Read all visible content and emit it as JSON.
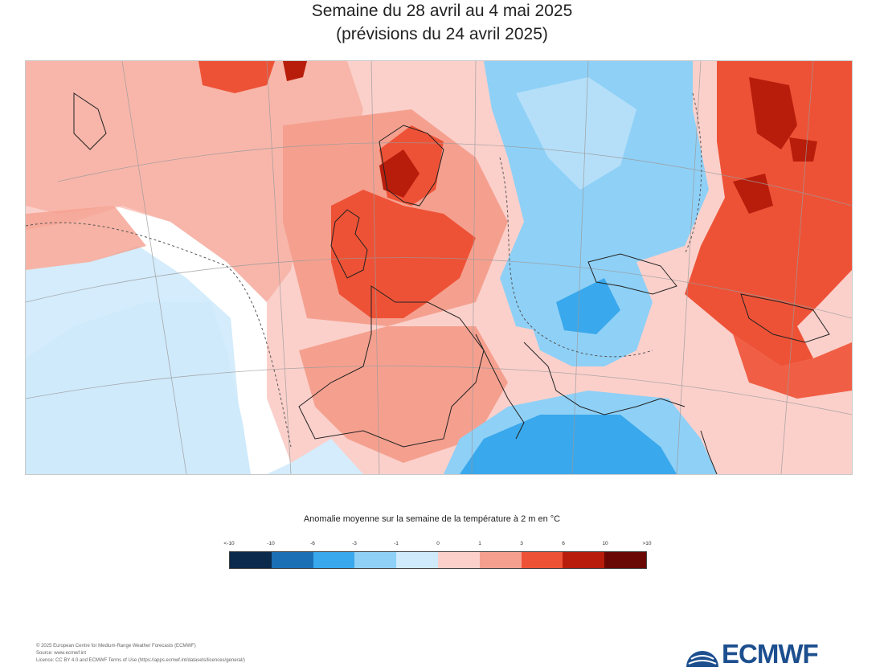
{
  "title": {
    "line1": "Semaine du 28 avril au 4 mai 2025",
    "line2": "(prévisions du 24 avril 2025)"
  },
  "legend": {
    "title": "Anomalie moyenne sur la semaine de la température à 2 m en °C",
    "ticks": [
      "<-10",
      "-10",
      "-6",
      "-3",
      "-1",
      "0",
      "1",
      "3",
      "6",
      "10",
      ">10"
    ],
    "colors": [
      "#0b2a4c",
      "#1b6fb5",
      "#39a8ec",
      "#8fd0f6",
      "#cfeafb",
      "#fbd0cb",
      "#f5a08f",
      "#ee5236",
      "#b81d0c",
      "#6a0806"
    ]
  },
  "footer": {
    "line1": "© 2025 European Centre for Medium-Range Weather Forecasts (ECMWF)",
    "line2": "Source: www.ecmwf.int",
    "line3": "Licence: CC BY 4.0 and ECMWF Terms of Use (https://apps.ecmwf.int/datasets/licences/general/)"
  },
  "logo": {
    "text": "ECMWF",
    "icon": "ecmwf-globe-icon",
    "color": "#1d4f8f"
  }
}
